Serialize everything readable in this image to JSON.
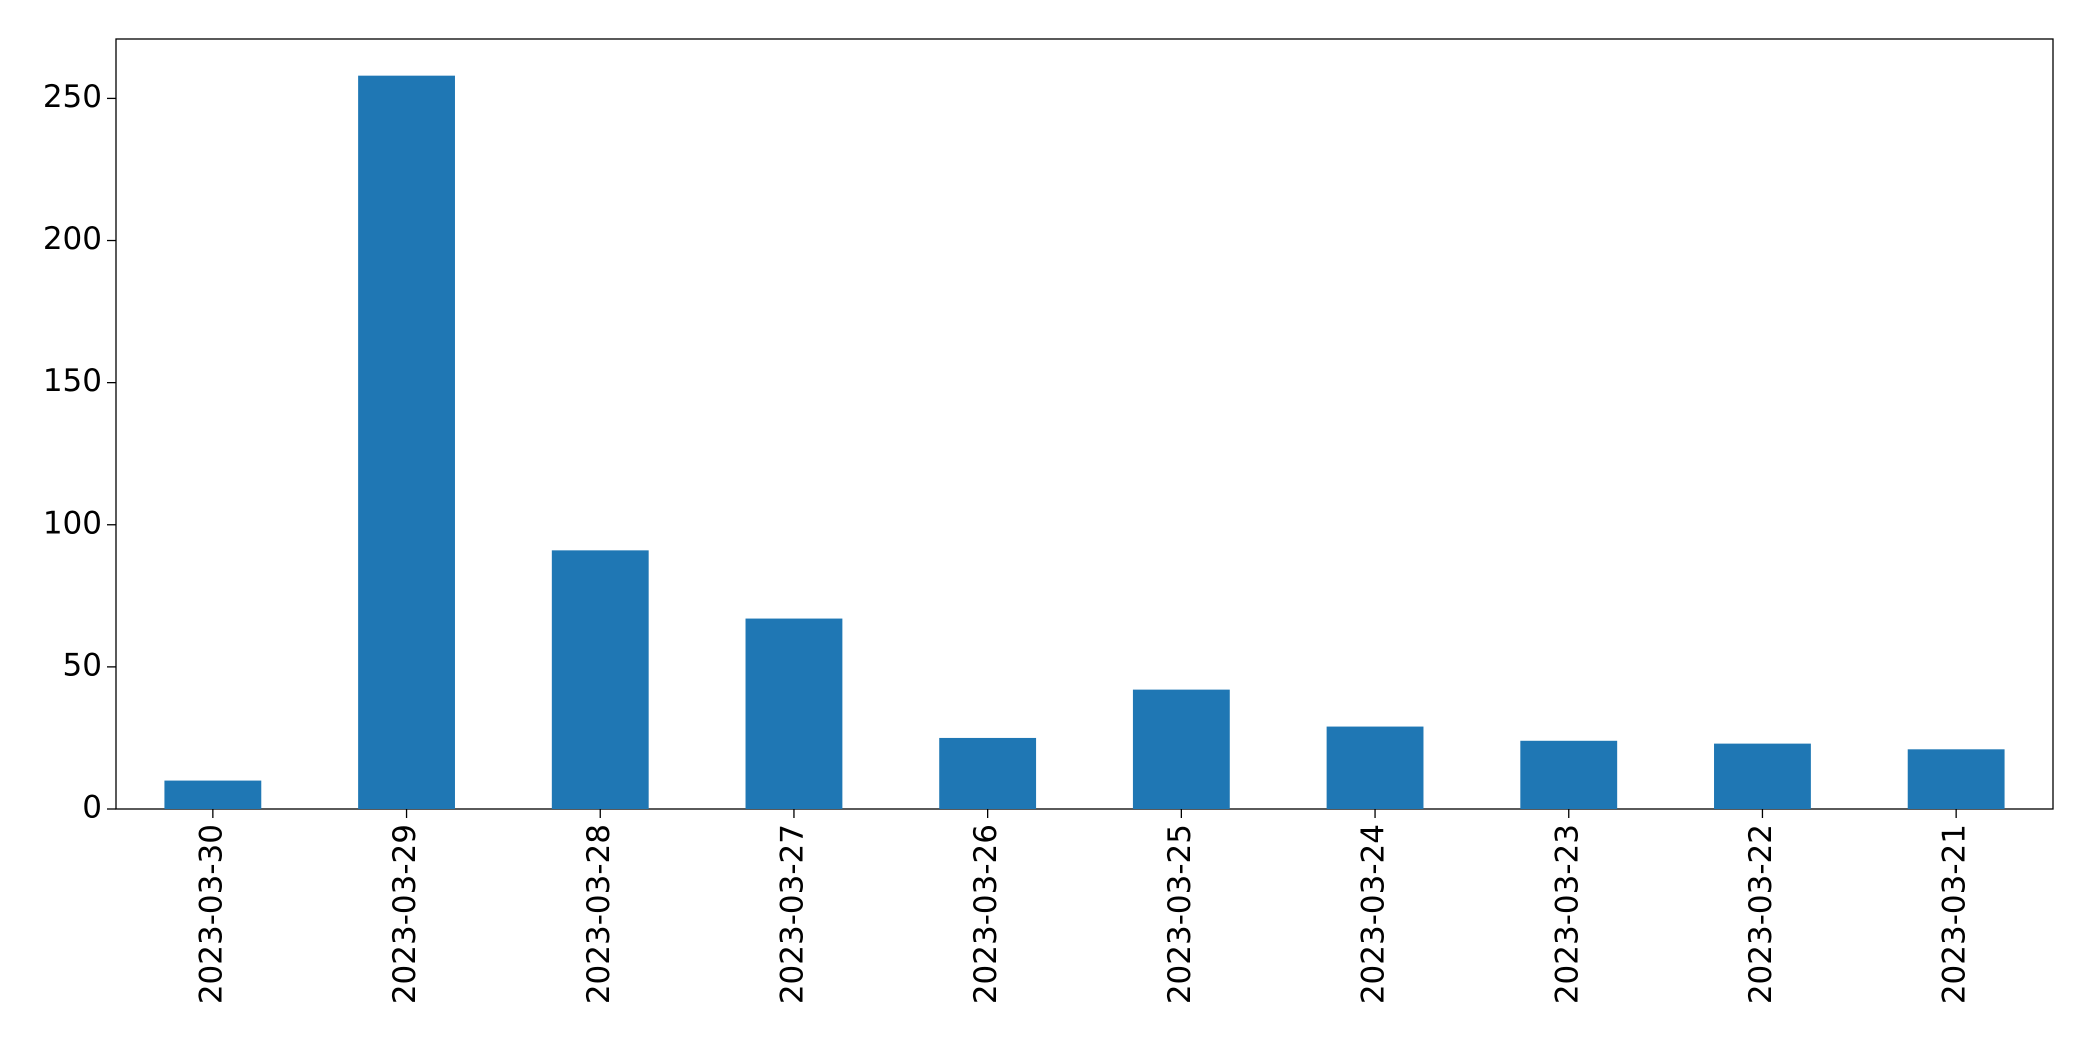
{
  "chart_data": {
    "type": "bar",
    "categories": [
      "2023-03-30",
      "2023-03-29",
      "2023-03-28",
      "2023-03-27",
      "2023-03-26",
      "2023-03-25",
      "2023-03-24",
      "2023-03-23",
      "2023-03-22",
      "2023-03-21"
    ],
    "values": [
      10,
      258,
      91,
      67,
      25,
      42,
      29,
      24,
      23,
      21
    ],
    "color": "#1f77b4",
    "ylim": [
      0,
      270.9
    ],
    "yticks": [
      0,
      50,
      100,
      150,
      200,
      250
    ],
    "grid": false
  }
}
